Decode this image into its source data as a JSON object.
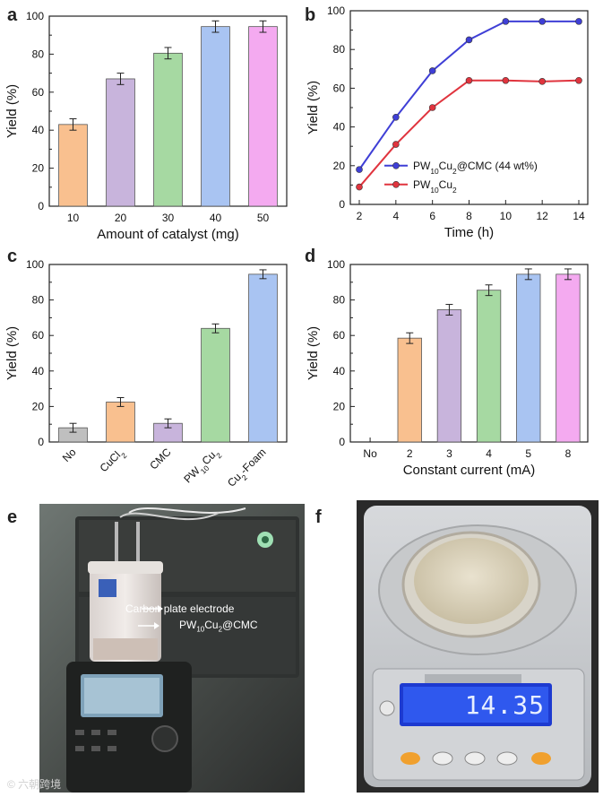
{
  "panels": {
    "a": "a",
    "b": "b",
    "c": "c",
    "d": "d",
    "e": "e",
    "f": "f"
  },
  "chart_data": [
    {
      "id": "a",
      "type": "bar",
      "categories": [
        "10",
        "20",
        "30",
        "40",
        "50"
      ],
      "values": [
        43,
        67,
        80.5,
        94.5,
        94.5
      ],
      "errors": [
        3,
        3,
        3,
        3,
        3
      ],
      "colors": [
        "#f9c08f",
        "#c8b4dc",
        "#a6d9a2",
        "#a9c4f2",
        "#f4aaf0"
      ],
      "xlabel": "Amount of catalyst (mg)",
      "ylabel": "Yield (%)",
      "ylim": [
        0,
        100
      ],
      "yticks": [
        "0",
        "20",
        "40",
        "60",
        "80",
        "100"
      ]
    },
    {
      "id": "b",
      "type": "line",
      "x": [
        2,
        4,
        6,
        8,
        10,
        12,
        14
      ],
      "xticks": [
        "2",
        "4",
        "6",
        "8",
        "10",
        "12",
        "14"
      ],
      "series": [
        {
          "name": "PW10Cu2@CMC (44 wt%)",
          "color": "#3f3fd6",
          "values": [
            18,
            45,
            69,
            85,
            94.5,
            94.5,
            94.5
          ]
        },
        {
          "name": "PW10Cu2",
          "color": "#e0343e",
          "values": [
            9,
            31,
            50,
            64,
            64,
            63.5,
            64
          ]
        }
      ],
      "legend_labels": [
        {
          "base": "PW",
          "sub1": "10",
          "mid": "Cu",
          "sub2": "2",
          "tail": "@CMC (44 wt%)"
        },
        {
          "base": "PW",
          "sub1": "10",
          "mid": "Cu",
          "sub2": "2",
          "tail": ""
        }
      ],
      "xlabel": "Time (h)",
      "ylabel": "Yield (%)",
      "xlim": [
        2,
        14
      ],
      "ylim": [
        0,
        100
      ],
      "yticks": [
        "0",
        "20",
        "40",
        "60",
        "80",
        "100"
      ]
    },
    {
      "id": "c",
      "type": "bar",
      "categories": [
        "No",
        "CuCl2",
        "CMC",
        "PW10Cu2",
        "Cu2-Foam"
      ],
      "category_labels": [
        {
          "base": "No"
        },
        {
          "base": "CuCl",
          "sub1": "2"
        },
        {
          "base": "CMC"
        },
        {
          "base": "PW",
          "sub1": "10",
          "mid": "Cu",
          "sub2": "2"
        },
        {
          "base": "Cu",
          "sub1": "2",
          "mid": "-Foam"
        }
      ],
      "values": [
        8,
        22.5,
        10.5,
        64,
        94.5
      ],
      "errors": [
        2.5,
        2.5,
        2.5,
        2.5,
        2.5
      ],
      "colors": [
        "#bfbfbf",
        "#f9c08f",
        "#c8b4dc",
        "#a6d9a2",
        "#a9c4f2"
      ],
      "xlabel": "",
      "ylabel": "Yield (%)",
      "ylim": [
        0,
        100
      ],
      "yticks": [
        "0",
        "20",
        "40",
        "60",
        "80",
        "100"
      ]
    },
    {
      "id": "d",
      "type": "bar",
      "categories": [
        "No",
        "2",
        "3",
        "4",
        "5",
        "8"
      ],
      "values": [
        0,
        58.5,
        74.5,
        85.5,
        94.5,
        94.5
      ],
      "errors": [
        0,
        3,
        3,
        3,
        3,
        3
      ],
      "colors": [
        "#ffffff",
        "#f9c08f",
        "#c8b4dc",
        "#a6d9a2",
        "#a9c4f2",
        "#f4aaf0"
      ],
      "xlabel": "Constant current (mA)",
      "ylabel": "Yield (%)",
      "ylim": [
        0,
        100
      ],
      "yticks": [
        "0",
        "20",
        "40",
        "60",
        "80",
        "100"
      ]
    }
  ],
  "photo_e": {
    "label_carbon": "Carbon plate electrode",
    "label_catalyst": {
      "base": "PW",
      "sub1": "10",
      "mid": "Cu",
      "sub2": "2",
      "tail": "@CMC"
    }
  },
  "photo_f": {
    "display_reading": "14.35"
  },
  "watermark": "© 六朝跨境"
}
